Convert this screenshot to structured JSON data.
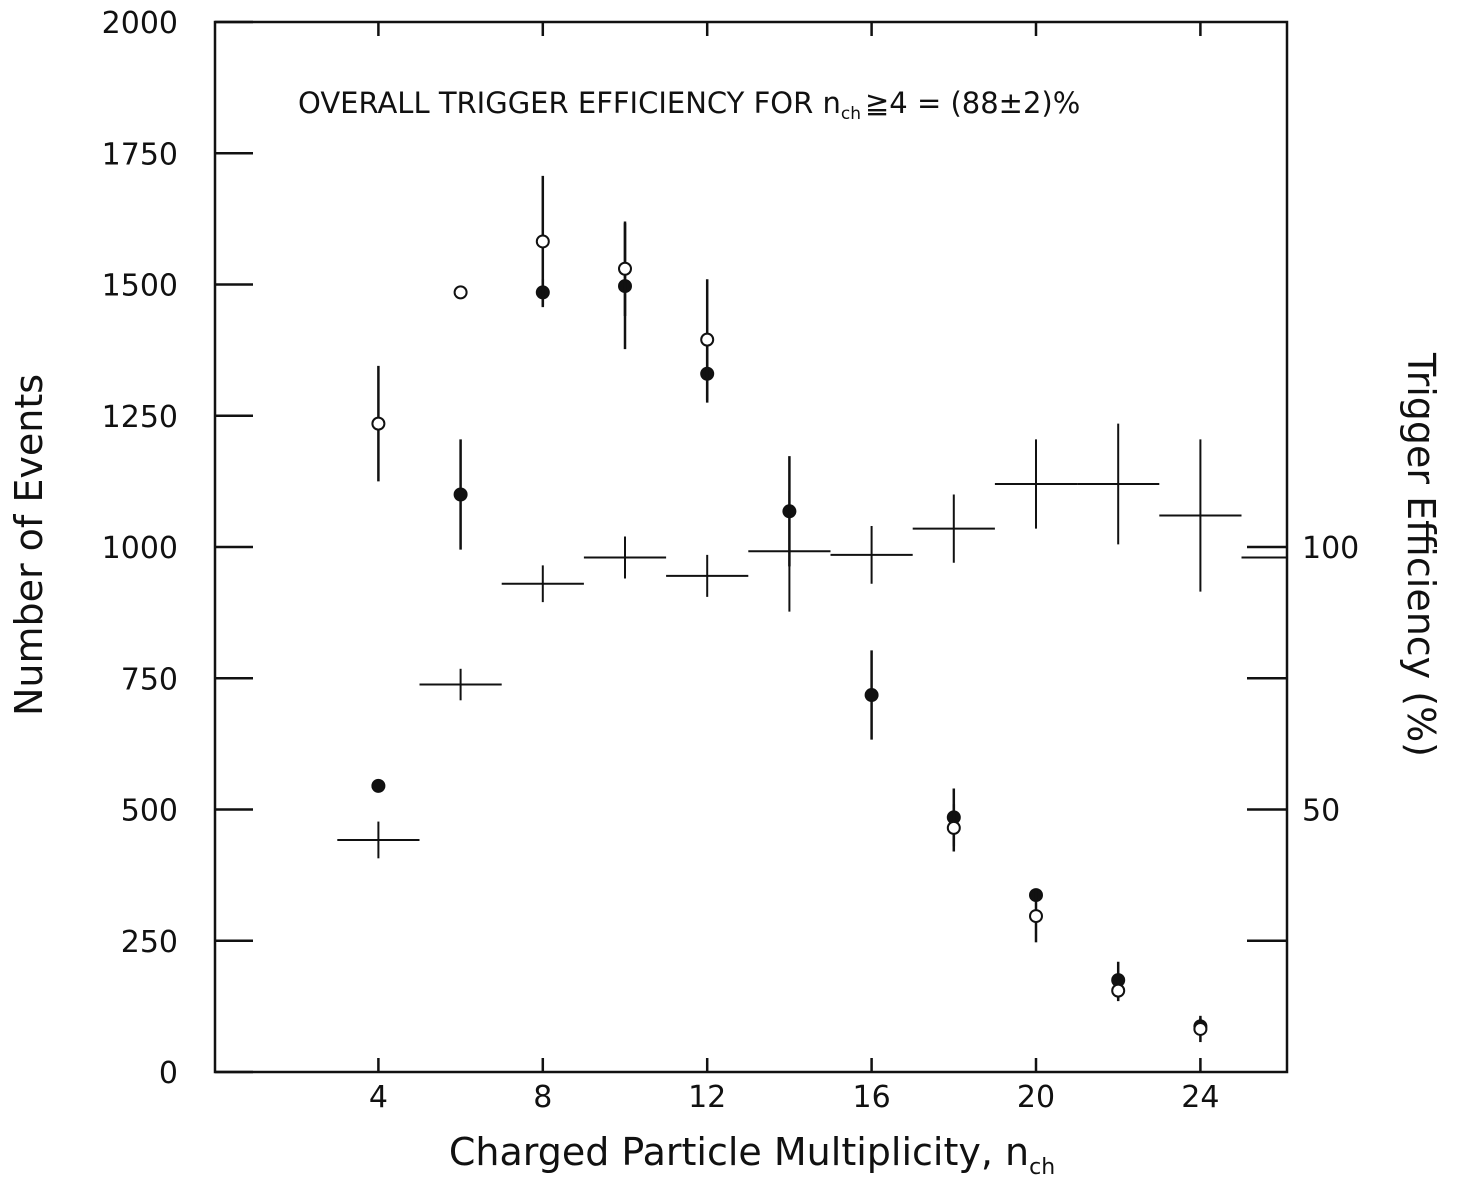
{
  "chart_data": {
    "type": "scatter",
    "annotation": {
      "pre": "OVERALL TRIGGER EFFICIENCY FOR n",
      "sub": "ch",
      "post": "≧4 = (88±2)%"
    },
    "xlabel": {
      "main": "Charged Particle Multiplicity, n",
      "sub": "ch"
    },
    "ylabel": "Number of Events",
    "y2label": "Trigger Efficiency (%)",
    "xlim": [
      0,
      26
    ],
    "ylim": [
      0,
      2000
    ],
    "y2lim": [
      0,
      200
    ],
    "x_ticks": [
      4,
      8,
      12,
      16,
      20,
      24
    ],
    "y_ticks": [
      0,
      250,
      500,
      750,
      1000,
      1250,
      1500,
      1750,
      2000
    ],
    "y_tick_labels": [
      "0",
      "250",
      "500",
      "750",
      "1000",
      "1250",
      "1500",
      "1750",
      "2000"
    ],
    "y2_ticks": [
      50,
      100
    ],
    "y2_minor_ticks": [
      25,
      50,
      75,
      100
    ],
    "grid": false,
    "series": [
      {
        "marker": "filled-circle",
        "points": [
          {
            "x": 4,
            "y": 545,
            "err": 0
          },
          {
            "x": 6,
            "y": 1100,
            "err": 105
          },
          {
            "x": 8,
            "y": 1485,
            "err": 25
          },
          {
            "x": 10,
            "y": 1497,
            "err": 120
          },
          {
            "x": 12,
            "y": 1330,
            "err": 55
          },
          {
            "x": 14,
            "y": 1068,
            "err": 105
          },
          {
            "x": 16,
            "y": 718,
            "err": 85
          },
          {
            "x": 18,
            "y": 485,
            "err": 55
          },
          {
            "x": 20,
            "y": 337,
            "err": 0
          },
          {
            "x": 22,
            "y": 175,
            "err": 35
          },
          {
            "x": 24,
            "y": 87,
            "err": 15
          }
        ]
      },
      {
        "marker": "open-circle",
        "points": [
          {
            "x": 4,
            "y": 1235,
            "err": 110
          },
          {
            "x": 6,
            "y": 1485,
            "err": 0
          },
          {
            "x": 8,
            "y": 1582,
            "err": 125
          },
          {
            "x": 10,
            "y": 1530,
            "err": 90
          },
          {
            "x": 12,
            "y": 1395,
            "err": 115
          },
          {
            "x": 18,
            "y": 465,
            "err": 45
          },
          {
            "x": 20,
            "y": 297,
            "err": 50
          },
          {
            "x": 22,
            "y": 155,
            "err": 20
          },
          {
            "x": 24,
            "y": 82,
            "err": 25
          }
        ]
      },
      {
        "marker": "cross",
        "axis": "y2",
        "points": [
          {
            "x": 4,
            "xerr": 1,
            "y": 44.2,
            "yerr": 3.5
          },
          {
            "x": 6,
            "xerr": 1,
            "y": 73.8,
            "yerr": 3
          },
          {
            "x": 8,
            "xerr": 1,
            "y": 93,
            "yerr": 3.5
          },
          {
            "x": 10,
            "xerr": 1,
            "y": 98,
            "yerr": 4
          },
          {
            "x": 12,
            "xerr": 1,
            "y": 94.5,
            "yerr": 4
          },
          {
            "x": 14,
            "xerr": 1,
            "y": 99.2,
            "yerr": 11.5
          },
          {
            "x": 16,
            "xerr": 1,
            "y": 98.5,
            "yerr": 5.5
          },
          {
            "x": 18,
            "xerr": 1,
            "y": 103.5,
            "yerr": 6.5
          },
          {
            "x": 20,
            "xerr": 1,
            "y": 112,
            "yerr": 8.5
          },
          {
            "x": 22,
            "xerr": 1,
            "y": 112,
            "yerr": 11.5
          },
          {
            "x": 24,
            "xerr": 1,
            "y": 106,
            "yerr": 14.5
          },
          {
            "x": 26,
            "xerr": 1,
            "y": 98,
            "yerr": 0
          }
        ]
      }
    ]
  }
}
